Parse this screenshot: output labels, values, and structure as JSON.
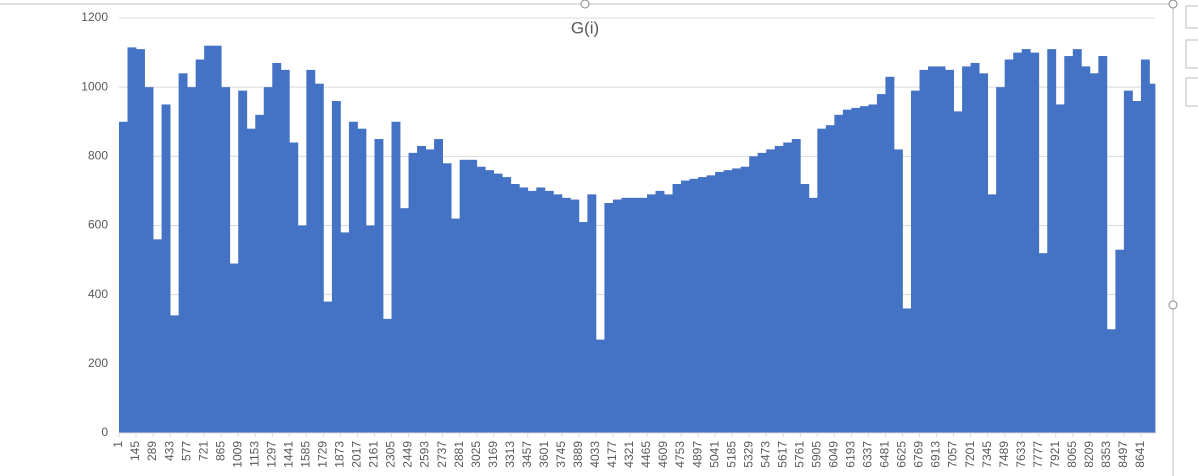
{
  "chart_data": {
    "type": "bar",
    "title": "G(i)",
    "color": "#4472c4",
    "grid": true,
    "x": [
      1,
      73,
      145,
      217,
      289,
      361,
      433,
      505,
      577,
      649,
      721,
      793,
      865,
      937,
      1009,
      1081,
      1153,
      1225,
      1297,
      1369,
      1441,
      1513,
      1585,
      1657,
      1729,
      1801,
      1873,
      1945,
      2017,
      2089,
      2161,
      2233,
      2305,
      2377,
      2449,
      2521,
      2593,
      2665,
      2737,
      2809,
      2881,
      2953,
      3025,
      3097,
      3169,
      3241,
      3313,
      3385,
      3457,
      3529,
      3601,
      3673,
      3745,
      3817,
      3889,
      3961,
      4033,
      4105,
      4177,
      4249,
      4321,
      4393,
      4465,
      4537,
      4609,
      4681,
      4753,
      4825,
      4897,
      4969,
      5041,
      5113,
      5185,
      5257,
      5329,
      5401,
      5473,
      5545,
      5617,
      5689,
      5761,
      5833,
      5905,
      5977,
      6049,
      6121,
      6193,
      6265,
      6337,
      6409,
      6481,
      6553,
      6625,
      6697,
      6769,
      6841,
      6913,
      6985,
      7057,
      7129,
      7201,
      7273,
      7345,
      7417,
      7489,
      7561,
      7633,
      7705,
      7777,
      7849,
      7921,
      7993,
      8065,
      8137,
      8209,
      8281,
      8353,
      8425,
      8497,
      8569,
      8641,
      8713
    ],
    "values": [
      900,
      1115,
      1110,
      1000,
      560,
      950,
      340,
      1040,
      1000,
      1080,
      1120,
      1120,
      1000,
      490,
      990,
      880,
      920,
      1000,
      1070,
      1050,
      840,
      600,
      1050,
      1010,
      380,
      960,
      580,
      900,
      880,
      600,
      850,
      330,
      900,
      650,
      810,
      830,
      820,
      850,
      780,
      620,
      790,
      790,
      770,
      760,
      750,
      740,
      720,
      710,
      700,
      710,
      700,
      690,
      680,
      675,
      610,
      690,
      270,
      665,
      675,
      680,
      680,
      680,
      690,
      700,
      690,
      720,
      730,
      735,
      740,
      745,
      755,
      760,
      765,
      770,
      800,
      810,
      820,
      830,
      840,
      850,
      720,
      680,
      880,
      890,
      920,
      935,
      940,
      945,
      950,
      980,
      1030,
      820,
      360,
      990,
      1050,
      1060,
      1060,
      1050,
      930,
      1060,
      1070,
      1040,
      690,
      1000,
      1080,
      1100,
      1110,
      1100,
      520,
      1110,
      950,
      1090,
      1110,
      1060,
      1040,
      1090,
      300,
      530,
      990,
      960,
      1080,
      1010
    ],
    "xlim": [
      1,
      8760
    ],
    "xticks": [
      1,
      145,
      289,
      433,
      577,
      721,
      865,
      1009,
      1153,
      1297,
      1441,
      1585,
      1729,
      1873,
      2017,
      2161,
      2305,
      2449,
      2593,
      2737,
      2881,
      3025,
      3169,
      3313,
      3457,
      3601,
      3745,
      3889,
      4033,
      4177,
      4321,
      4465,
      4609,
      4753,
      4897,
      5041,
      5185,
      5329,
      5473,
      5617,
      5761,
      5905,
      6049,
      6193,
      6337,
      6481,
      6625,
      6769,
      6913,
      7057,
      7201,
      7345,
      7489,
      7633,
      7777,
      7921,
      8065,
      8209,
      8353,
      8497,
      8641
    ],
    "ylim": [
      0,
      1200
    ],
    "yticks": [
      0,
      200,
      400,
      600,
      800,
      1000,
      1200
    ]
  }
}
